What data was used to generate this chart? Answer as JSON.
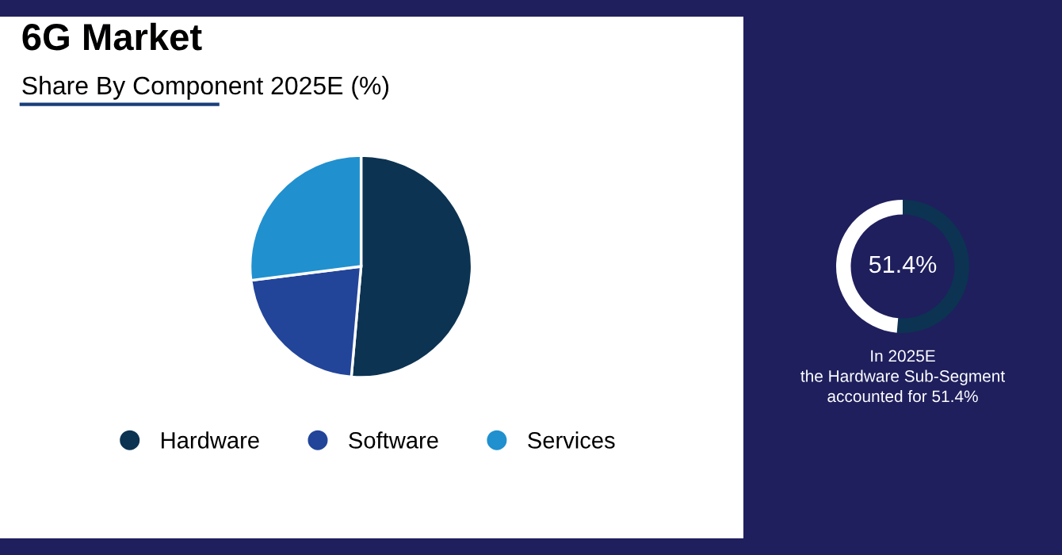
{
  "chart_data": [
    {
      "type": "pie",
      "title": "6G Market",
      "subtitle": "Share By Component 2025E (%)",
      "categories": [
        "Hardware",
        "Software",
        "Services"
      ],
      "values": [
        51.4,
        21.6,
        27.0
      ],
      "colors": [
        "#0c3352",
        "#22459a",
        "#2090cf"
      ],
      "legend": "bottom"
    },
    {
      "type": "donut",
      "categories": [
        null,
        null
      ],
      "values": [
        51.4,
        48.6
      ],
      "colors": [
        "#0c3352",
        "#ffffff"
      ],
      "annotations": [
        "51.4%",
        "In 2025E\nthe Hardware Sub-Segment\naccounted for 51.4%"
      ]
    }
  ]
}
